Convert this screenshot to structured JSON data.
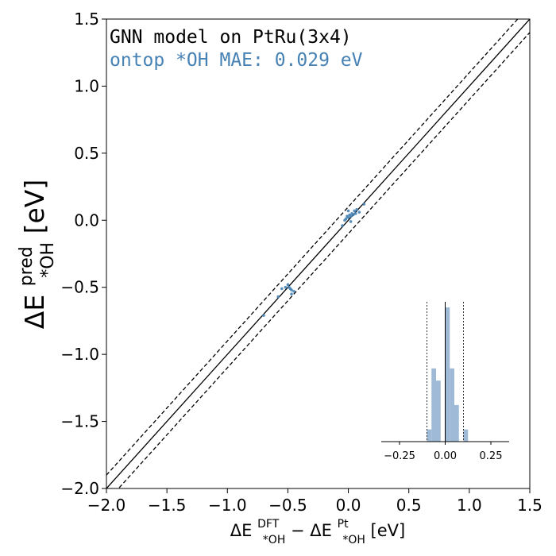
{
  "chart_data": [
    {
      "type": "scatter",
      "title_lines": [
        {
          "text": "GNN model on PtRu(3x4)",
          "color": "#000000"
        },
        {
          "text": "ontop *OH MAE: 0.029 eV",
          "color": "#4682b4"
        }
      ],
      "xlabel": {
        "base": "ΔE",
        "sup1": "DFT",
        "sub1": "*OH",
        "minus": " − ΔE",
        "sup2": "Pt",
        "sub2": "*OH",
        "unit": " [eV]"
      },
      "ylabel": {
        "base": "ΔE",
        "sup": "pred",
        "sub": "*OH",
        "unit": " [eV]"
      },
      "xlim": [
        -2.0,
        1.5
      ],
      "ylim": [
        -2.0,
        1.5
      ],
      "xticks": [
        -2.0,
        -1.5,
        -1.0,
        -0.5,
        0.0,
        0.5,
        1.0,
        1.5
      ],
      "yticks": [
        -2.0,
        -1.5,
        -1.0,
        -0.5,
        0.0,
        0.5,
        1.0,
        1.5
      ],
      "xtick_labels": [
        "−2.0",
        "−1.5",
        "−1.0",
        "−0.5",
        "0.0",
        "0.5",
        "1.0",
        "1.5"
      ],
      "ytick_labels": [
        "−2.0",
        "−1.5",
        "−1.0",
        "−0.5",
        "0.0",
        "0.5",
        "1.0",
        "1.5"
      ],
      "reference_lines": [
        {
          "name": "parity",
          "offset": 0.0,
          "style": "solid"
        },
        {
          "name": "upper-bound",
          "offset": 0.1,
          "style": "dashed"
        },
        {
          "name": "lower-bound",
          "offset": -0.1,
          "style": "dashed"
        }
      ],
      "point_color": "#4682b4",
      "points": [
        [
          -0.7,
          -0.71
        ],
        [
          -0.58,
          -0.57
        ],
        [
          -0.55,
          -0.51
        ],
        [
          -0.52,
          -0.5
        ],
        [
          -0.5,
          -0.48
        ],
        [
          -0.49,
          -0.5
        ],
        [
          -0.48,
          -0.51
        ],
        [
          -0.47,
          -0.52
        ],
        [
          -0.45,
          -0.53
        ],
        [
          -0.47,
          -0.55
        ],
        [
          -0.05,
          -0.04
        ],
        [
          -0.03,
          0.0
        ],
        [
          -0.02,
          0.01
        ],
        [
          -0.01,
          0.03
        ],
        [
          0.0,
          0.02
        ],
        [
          0.01,
          0.04
        ],
        [
          0.02,
          0.03
        ],
        [
          0.03,
          0.05
        ],
        [
          0.04,
          0.04
        ],
        [
          0.05,
          0.07
        ],
        [
          0.06,
          0.05
        ],
        [
          0.07,
          0.08
        ],
        [
          0.09,
          0.06
        ],
        [
          0.13,
          0.12
        ],
        [
          0.0,
          0.07
        ],
        [
          0.02,
          -0.01
        ]
      ],
      "grid": false
    },
    {
      "type": "bar",
      "role": "inset-error-histogram",
      "xlim": [
        -0.35,
        0.35
      ],
      "xticks": [
        -0.25,
        0.0,
        0.25
      ],
      "xtick_labels": [
        "−0.25",
        "0.00",
        "0.25"
      ],
      "bin_width": 0.025,
      "bins": [
        {
          "start": -0.1,
          "count": 1
        },
        {
          "start": -0.075,
          "count": 6
        },
        {
          "start": -0.05,
          "count": 5
        },
        {
          "start": -0.025,
          "count": 0
        },
        {
          "start": 0.0,
          "count": 11
        },
        {
          "start": 0.025,
          "count": 6
        },
        {
          "start": 0.05,
          "count": 3
        },
        {
          "start": 0.075,
          "count": 0
        },
        {
          "start": 0.1,
          "count": 1
        }
      ],
      "bar_color": "#9fbad6",
      "reference_lines": [
        {
          "name": "zero",
          "value": 0.0,
          "style": "solid"
        },
        {
          "name": "upper-bound",
          "value": 0.1,
          "style": "dashed"
        },
        {
          "name": "lower-bound",
          "value": -0.1,
          "style": "dashed"
        }
      ]
    }
  ]
}
